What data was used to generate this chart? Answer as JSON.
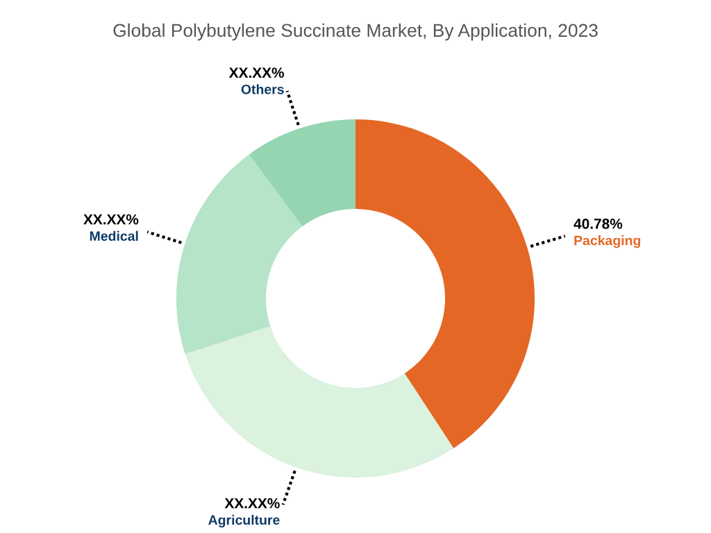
{
  "chart_data": {
    "type": "donut",
    "title": "Global Polybutylene Succinate Market, By Application, 2023",
    "categories": [
      "Packaging",
      "Agriculture",
      "Medical",
      "Others"
    ],
    "values": [
      40.78,
      29.2,
      19.9,
      10.12
    ],
    "colors": [
      "#e46726",
      "#daf2de",
      "#b5e4c8",
      "#95d5b2"
    ],
    "value_labels": [
      "40.78%",
      "XX.XX%",
      "XX.XX%",
      "XX.XX%"
    ],
    "legend": false
  }
}
